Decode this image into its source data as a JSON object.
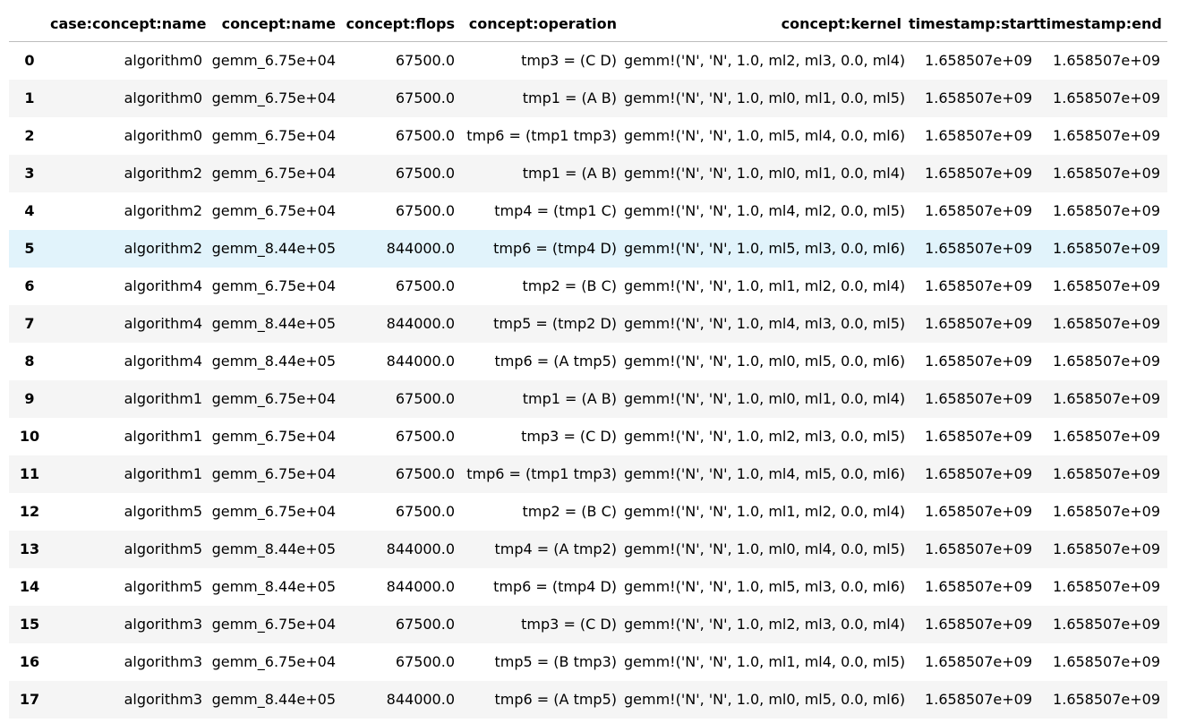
{
  "table": {
    "index_header": "",
    "columns": [
      "case:concept:name",
      "concept:name",
      "concept:flops",
      "concept:operation",
      "concept:kernel",
      "timestamp:start",
      "timestamp:end"
    ],
    "rows": [
      [
        "0",
        "algorithm0",
        "gemm_6.75e+04",
        "67500.0",
        "tmp3 = (C D)",
        "gemm!('N', 'N', 1.0, ml2, ml3, 0.0, ml4)",
        "1.658507e+09",
        "1.658507e+09"
      ],
      [
        "1",
        "algorithm0",
        "gemm_6.75e+04",
        "67500.0",
        "tmp1 = (A B)",
        "gemm!('N', 'N', 1.0, ml0, ml1, 0.0, ml5)",
        "1.658507e+09",
        "1.658507e+09"
      ],
      [
        "2",
        "algorithm0",
        "gemm_6.75e+04",
        "67500.0",
        "tmp6 = (tmp1 tmp3)",
        "gemm!('N', 'N', 1.0, ml5, ml4, 0.0, ml6)",
        "1.658507e+09",
        "1.658507e+09"
      ],
      [
        "3",
        "algorithm2",
        "gemm_6.75e+04",
        "67500.0",
        "tmp1 = (A B)",
        "gemm!('N', 'N', 1.0, ml0, ml1, 0.0, ml4)",
        "1.658507e+09",
        "1.658507e+09"
      ],
      [
        "4",
        "algorithm2",
        "gemm_6.75e+04",
        "67500.0",
        "tmp4 = (tmp1 C)",
        "gemm!('N', 'N', 1.0, ml4, ml2, 0.0, ml5)",
        "1.658507e+09",
        "1.658507e+09"
      ],
      [
        "5",
        "algorithm2",
        "gemm_8.44e+05",
        "844000.0",
        "tmp6 = (tmp4 D)",
        "gemm!('N', 'N', 1.0, ml5, ml3, 0.0, ml6)",
        "1.658507e+09",
        "1.658507e+09"
      ],
      [
        "6",
        "algorithm4",
        "gemm_6.75e+04",
        "67500.0",
        "tmp2 = (B C)",
        "gemm!('N', 'N', 1.0, ml1, ml2, 0.0, ml4)",
        "1.658507e+09",
        "1.658507e+09"
      ],
      [
        "7",
        "algorithm4",
        "gemm_8.44e+05",
        "844000.0",
        "tmp5 = (tmp2 D)",
        "gemm!('N', 'N', 1.0, ml4, ml3, 0.0, ml5)",
        "1.658507e+09",
        "1.658507e+09"
      ],
      [
        "8",
        "algorithm4",
        "gemm_8.44e+05",
        "844000.0",
        "tmp6 = (A tmp5)",
        "gemm!('N', 'N', 1.0, ml0, ml5, 0.0, ml6)",
        "1.658507e+09",
        "1.658507e+09"
      ],
      [
        "9",
        "algorithm1",
        "gemm_6.75e+04",
        "67500.0",
        "tmp1 = (A B)",
        "gemm!('N', 'N', 1.0, ml0, ml1, 0.0, ml4)",
        "1.658507e+09",
        "1.658507e+09"
      ],
      [
        "10",
        "algorithm1",
        "gemm_6.75e+04",
        "67500.0",
        "tmp3 = (C D)",
        "gemm!('N', 'N', 1.0, ml2, ml3, 0.0, ml5)",
        "1.658507e+09",
        "1.658507e+09"
      ],
      [
        "11",
        "algorithm1",
        "gemm_6.75e+04",
        "67500.0",
        "tmp6 = (tmp1 tmp3)",
        "gemm!('N', 'N', 1.0, ml4, ml5, 0.0, ml6)",
        "1.658507e+09",
        "1.658507e+09"
      ],
      [
        "12",
        "algorithm5",
        "gemm_6.75e+04",
        "67500.0",
        "tmp2 = (B C)",
        "gemm!('N', 'N', 1.0, ml1, ml2, 0.0, ml4)",
        "1.658507e+09",
        "1.658507e+09"
      ],
      [
        "13",
        "algorithm5",
        "gemm_8.44e+05",
        "844000.0",
        "tmp4 = (A tmp2)",
        "gemm!('N', 'N', 1.0, ml0, ml4, 0.0, ml5)",
        "1.658507e+09",
        "1.658507e+09"
      ],
      [
        "14",
        "algorithm5",
        "gemm_8.44e+05",
        "844000.0",
        "tmp6 = (tmp4 D)",
        "gemm!('N', 'N', 1.0, ml5, ml3, 0.0, ml6)",
        "1.658507e+09",
        "1.658507e+09"
      ],
      [
        "15",
        "algorithm3",
        "gemm_6.75e+04",
        "67500.0",
        "tmp3 = (C D)",
        "gemm!('N', 'N', 1.0, ml2, ml3, 0.0, ml4)",
        "1.658507e+09",
        "1.658507e+09"
      ],
      [
        "16",
        "algorithm3",
        "gemm_6.75e+04",
        "67500.0",
        "tmp5 = (B tmp3)",
        "gemm!('N', 'N', 1.0, ml1, ml4, 0.0, ml5)",
        "1.658507e+09",
        "1.658507e+09"
      ],
      [
        "17",
        "algorithm3",
        "gemm_8.44e+05",
        "844000.0",
        "tmp6 = (A tmp5)",
        "gemm!('N', 'N', 1.0, ml0, ml5, 0.0, ml6)",
        "1.658507e+09",
        "1.658507e+09"
      ]
    ],
    "highlighted_row": 5,
    "colors": {
      "stripe": "#f5f5f5",
      "hover": "#e1f3fb",
      "header_rule": "#bdbdbd"
    }
  }
}
